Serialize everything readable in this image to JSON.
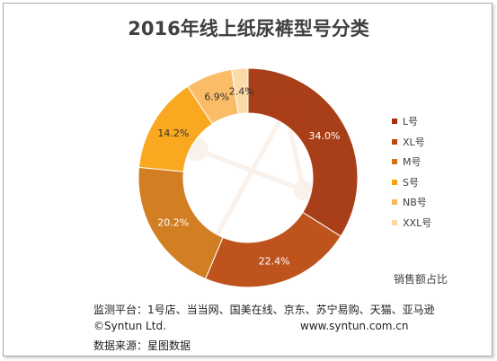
{
  "chart_data": {
    "type": "donut",
    "title": "2016年线上纸尿裤型号分类",
    "measure_label": "销售额占比",
    "legend_position": "right",
    "slices": [
      {
        "label": "L号",
        "value": 34.0,
        "value_label": "34.0%",
        "color": "#a23008"
      },
      {
        "label": "XL号",
        "value": 22.4,
        "value_label": "22.4%",
        "color": "#b9460d"
      },
      {
        "label": "M号",
        "value": 20.2,
        "value_label": "20.2%",
        "color": "#cf7411"
      },
      {
        "label": "S号",
        "value": 14.2,
        "value_label": "14.2%",
        "color": "#f9a10f"
      },
      {
        "label": "NB号",
        "value": 6.9,
        "value_label": "6.9%",
        "color": "#fbb75c"
      },
      {
        "label": "XXL号",
        "value": 2.4,
        "value_label": "2.4%",
        "color": "#fcd7a3"
      }
    ]
  },
  "footer": {
    "platforms": "监测平台：1号店、当当网、国美在线、京东、苏宁易购、天猫、亚马逊",
    "copyright": "©Syntun Ltd.",
    "website": "www.syntun.com.cn",
    "source": "数据来源：星图数据"
  }
}
